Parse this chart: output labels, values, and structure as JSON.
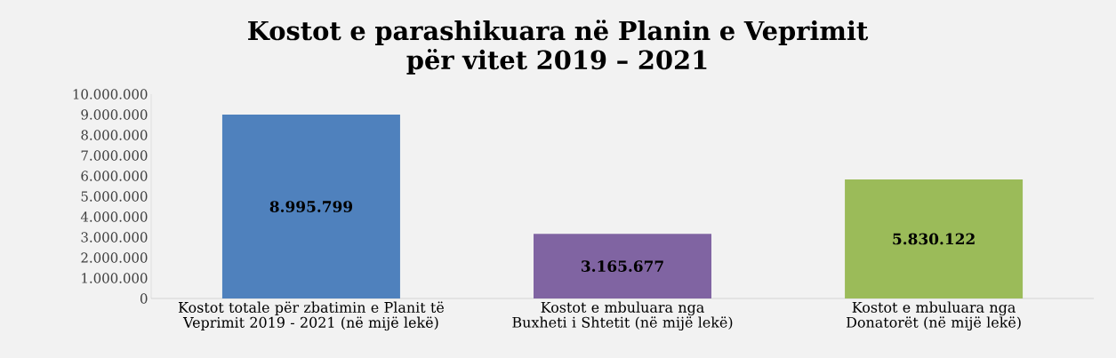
{
  "chart_data": {
    "type": "bar",
    "title": "Kostot e parashikuara në Planin e Veprimit\npër vitet 2019 – 2021",
    "categories": [
      "Kostot totale për zbatimin e Planit të Veprimit 2019 - 2021 (në mijë lekë)",
      "Kostot e mbuluara nga Buxheti i Shtetit (në mijë lekë)",
      "Kostot e mbuluara nga Donatorët (në mijë lekë)"
    ],
    "values": [
      8995799,
      3165677,
      5830122
    ],
    "value_labels": [
      "8.995.799",
      "3.165.677",
      "5.830.122"
    ],
    "colors": [
      "#4f81bd",
      "#8064a2",
      "#9bbb59"
    ],
    "ylim": [
      0,
      10000000
    ],
    "yticks": [
      {
        "value": 0,
        "label": "0"
      },
      {
        "value": 1000000,
        "label": "1.000.000"
      },
      {
        "value": 2000000,
        "label": "2.000.000"
      },
      {
        "value": 3000000,
        "label": "3.000.000"
      },
      {
        "value": 4000000,
        "label": "4.000.000"
      },
      {
        "value": 5000000,
        "label": "5.000.000"
      },
      {
        "value": 6000000,
        "label": "6.000.000"
      },
      {
        "value": 7000000,
        "label": "7.000.000"
      },
      {
        "value": 8000000,
        "label": "8.000.000"
      },
      {
        "value": 9000000,
        "label": "9.000.000"
      },
      {
        "value": 10000000,
        "label": "10.000.000"
      }
    ],
    "grid": false
  }
}
